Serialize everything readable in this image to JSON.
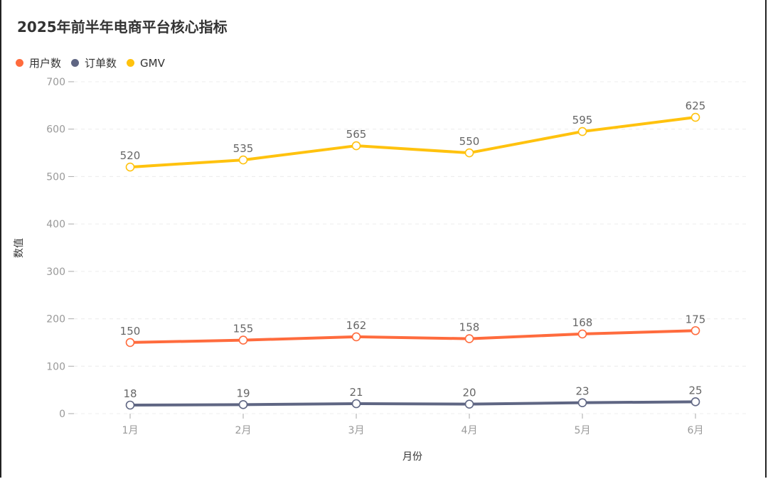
{
  "chart_data": {
    "type": "line",
    "title": "2025年前半年电商平台核心指标",
    "xlabel": "月份",
    "ylabel": "数值",
    "categories": [
      "1月",
      "2月",
      "3月",
      "4月",
      "5月",
      "6月"
    ],
    "ylim": [
      0,
      700
    ],
    "yticks": [
      0,
      100,
      200,
      300,
      400,
      500,
      600,
      700
    ],
    "grid": true,
    "legend_position": "top-left",
    "series": [
      {
        "name": "用户数",
        "color": "#ff6b3d",
        "values": [
          150,
          155,
          162,
          158,
          168,
          175
        ]
      },
      {
        "name": "订单数",
        "color": "#5f6683",
        "values": [
          18,
          19,
          21,
          20,
          23,
          25
        ]
      },
      {
        "name": "GMV",
        "color": "#ffc20e",
        "values": [
          520,
          535,
          565,
          550,
          595,
          625
        ]
      }
    ]
  }
}
